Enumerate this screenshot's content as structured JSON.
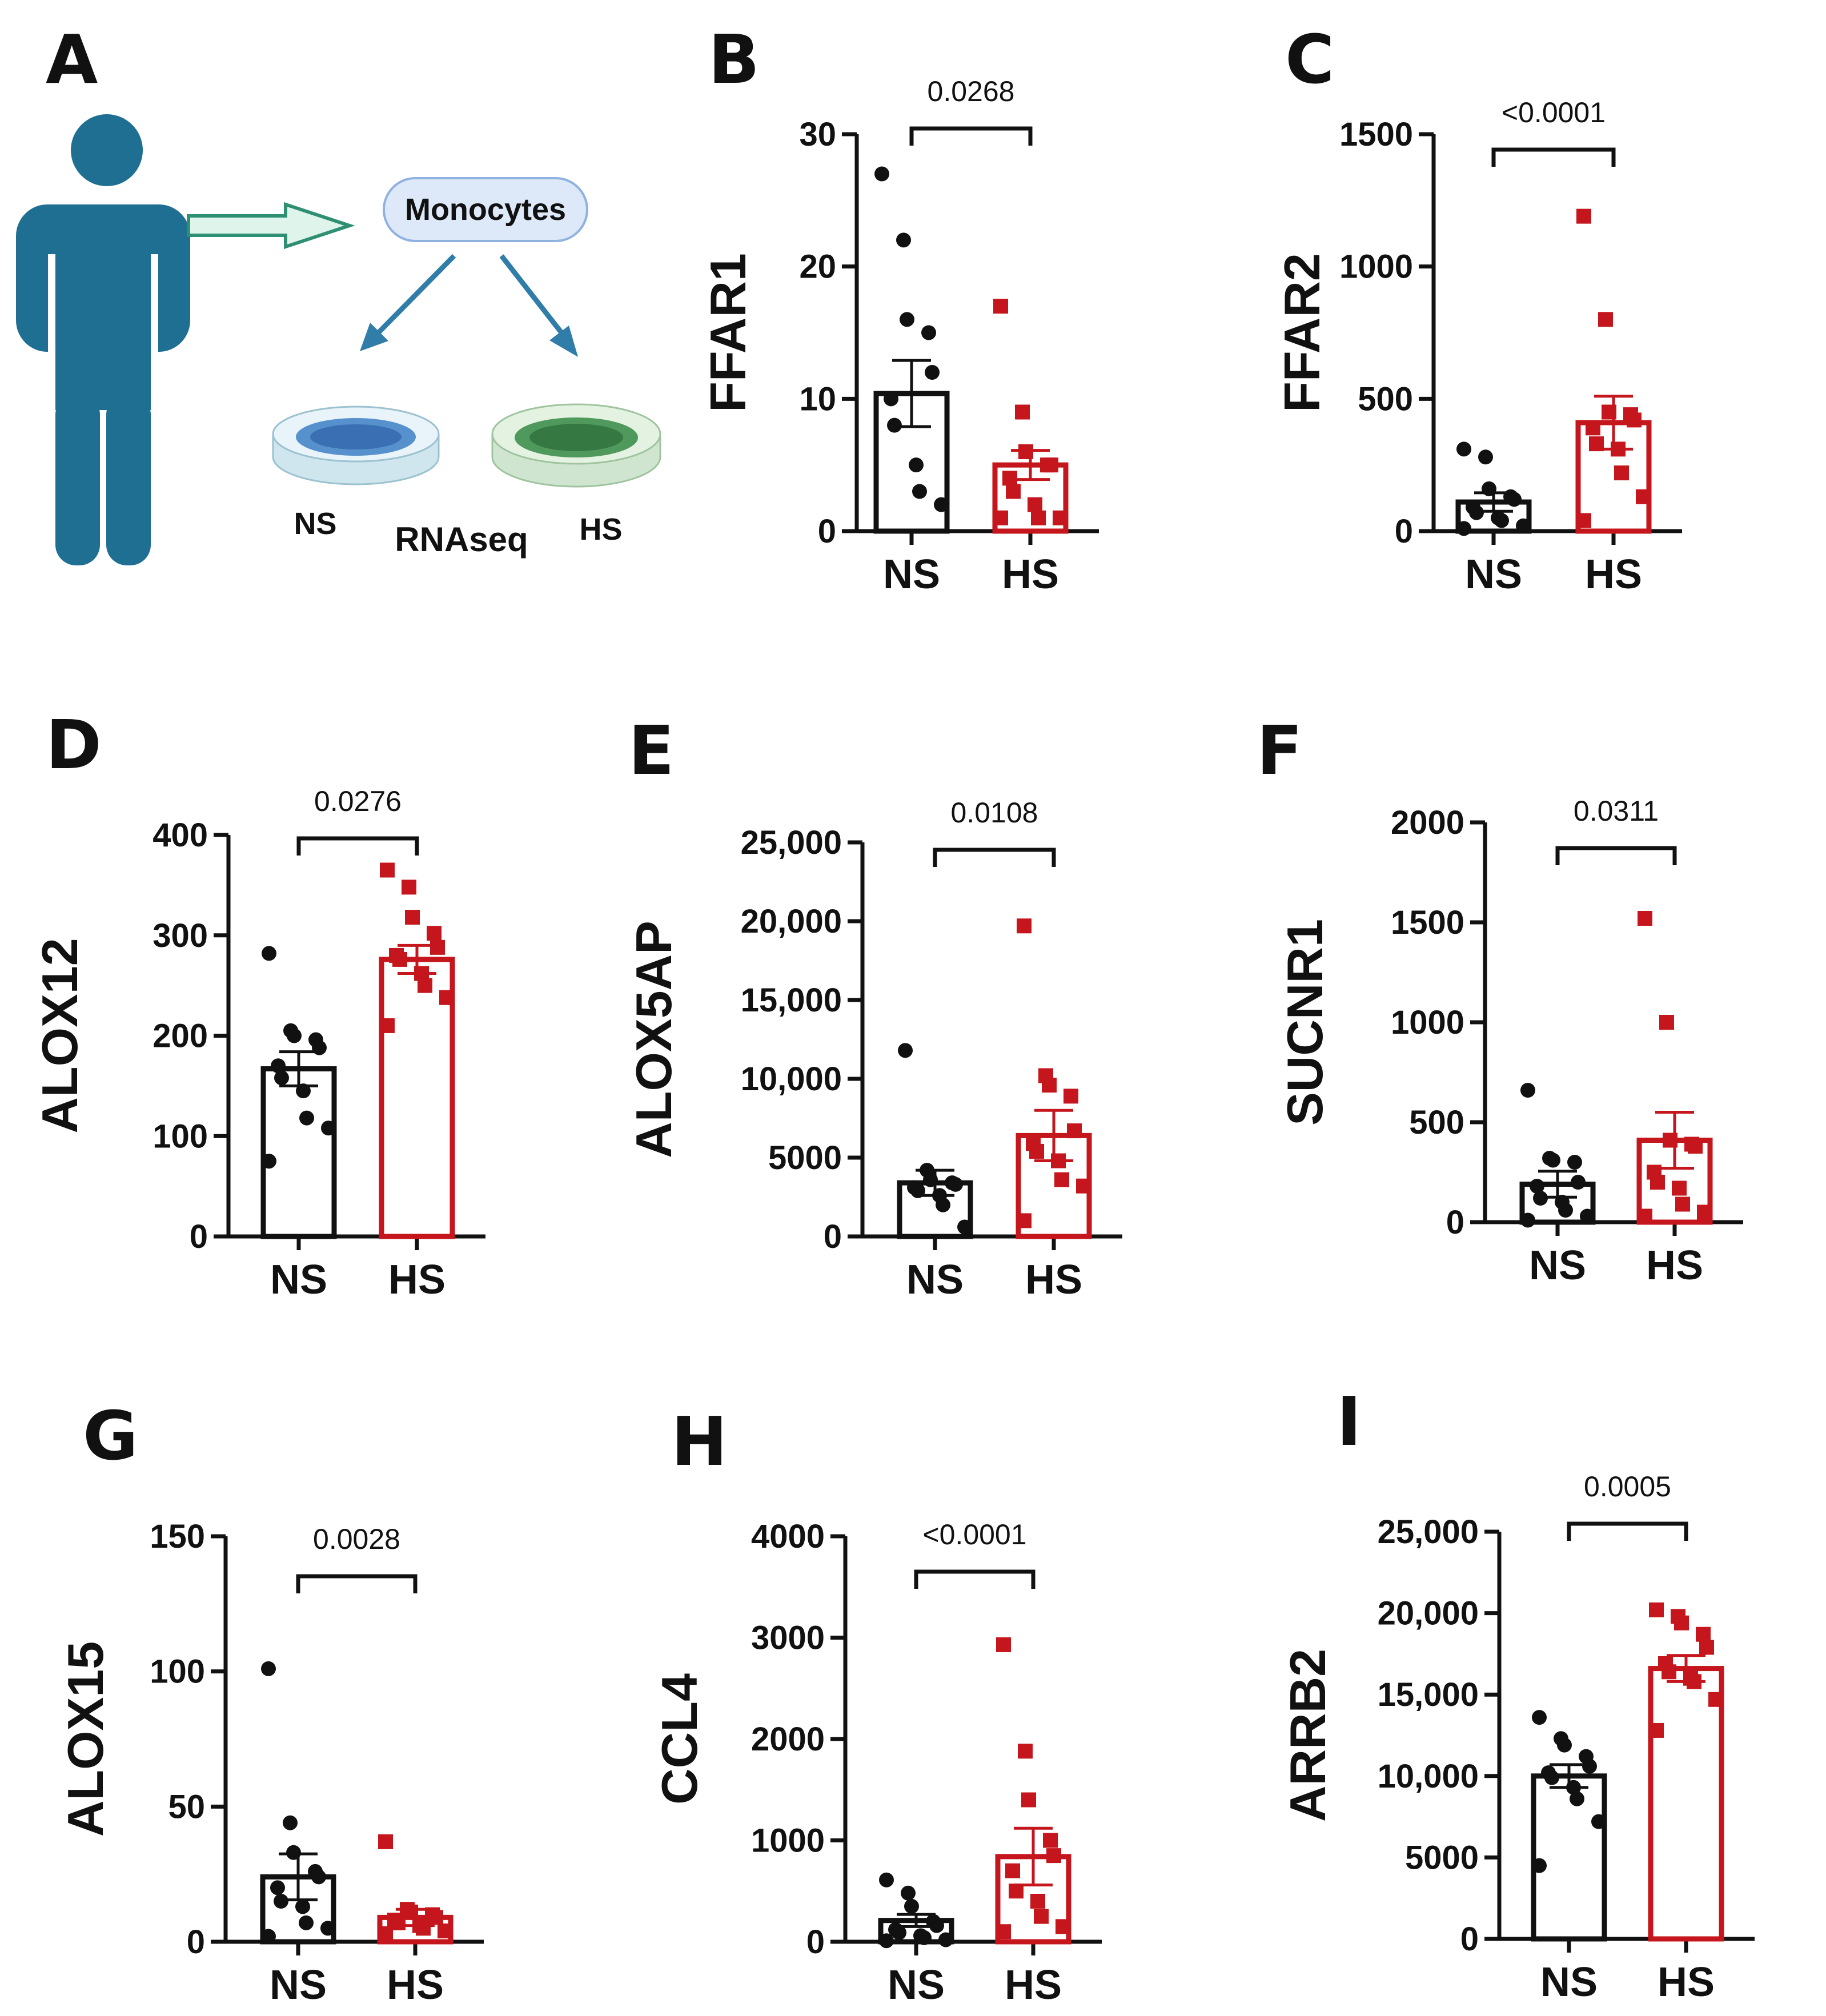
{
  "figure": {
    "diagram": {
      "letter": "A",
      "monocytes_label": "Monocytes",
      "ns_label": "NS",
      "hs_label": "HS",
      "rnaseq_label": "RNAseq",
      "colors": {
        "person": "#1f6f93",
        "arrow": "#2f7da8",
        "dish_ns": "#3d7fc4",
        "dish_hs": "#3f8f4f"
      }
    }
  },
  "colors": {
    "ns": "#111111",
    "hs": "#c4161c"
  },
  "chart_data": [
    {
      "letter": "B",
      "type": "bar",
      "title": "",
      "ylabel": "FFAR1",
      "categories": [
        "NS",
        "HS"
      ],
      "ylim": [
        0,
        30
      ],
      "yticks": [
        0,
        10,
        20,
        30
      ],
      "ytick_labels": [
        "0",
        "10",
        "20",
        "30"
      ],
      "means": [
        10.4,
        5.0
      ],
      "sems": [
        2.5,
        1.1
      ],
      "pvalue": "0.0268",
      "points": [
        [
          27,
          22,
          16,
          15,
          12,
          10,
          8,
          5,
          3,
          2
        ],
        [
          17,
          9,
          6,
          5,
          5,
          4,
          3,
          2,
          1,
          1,
          1
        ]
      ]
    },
    {
      "letter": "C",
      "type": "bar",
      "title": "",
      "ylabel": "FFAR2",
      "categories": [
        "NS",
        "HS"
      ],
      "ylim": [
        0,
        1500
      ],
      "yticks": [
        0,
        500,
        1000,
        1500
      ],
      "ytick_labels": [
        "0",
        "500",
        "1000",
        "1500"
      ],
      "means": [
        110,
        410
      ],
      "sems": [
        35,
        100
      ],
      "pvalue": "<0.0001",
      "points": [
        [
          310,
          280,
          160,
          130,
          120,
          90,
          70,
          50,
          40,
          20,
          10
        ],
        [
          1190,
          800,
          450,
          440,
          420,
          390,
          330,
          310,
          220,
          130,
          40
        ]
      ]
    },
    {
      "letter": "D",
      "type": "bar",
      "title": "",
      "ylabel": "ALOX12",
      "categories": [
        "NS",
        "HS"
      ],
      "ylim": [
        0,
        400
      ],
      "yticks": [
        0,
        100,
        200,
        300,
        400
      ],
      "ytick_labels": [
        "0",
        "100",
        "200",
        "300",
        "400"
      ],
      "means": [
        167,
        276
      ],
      "sems": [
        17,
        14
      ],
      "pvalue": "0.0276",
      "points": [
        [
          282,
          205,
          200,
          196,
          188,
          170,
          158,
          145,
          118,
          108,
          75
        ],
        [
          365,
          348,
          318,
          302,
          288,
          280,
          276,
          262,
          250,
          238,
          210
        ]
      ]
    },
    {
      "letter": "E",
      "type": "bar",
      "title": "",
      "ylabel": "ALOX5AP",
      "categories": [
        "NS",
        "HS"
      ],
      "ylim": [
        0,
        25000
      ],
      "yticks": [
        0,
        5000,
        10000,
        15000,
        20000,
        25000
      ],
      "ytick_labels": [
        "0",
        "5000",
        "10,000",
        "15,000",
        "20,000",
        "25,000"
      ],
      "means": [
        3400,
        6400
      ],
      "sems": [
        800,
        1600
      ],
      "pvalue": "0.0108",
      "points": [
        [
          11800,
          4200,
          3600,
          3400,
          3300,
          3100,
          2900,
          2600,
          2000,
          600
        ],
        [
          19700,
          10200,
          9600,
          8900,
          6700,
          5900,
          5400,
          4800,
          3600,
          3200,
          1000
        ]
      ]
    },
    {
      "letter": "F",
      "type": "bar",
      "title": "",
      "ylabel": "SUCNR1",
      "categories": [
        "NS",
        "HS"
      ],
      "ylim": [
        0,
        2000
      ],
      "yticks": [
        0,
        500,
        1000,
        1500,
        2000
      ],
      "ytick_labels": [
        "0",
        "500",
        "1000",
        "1500",
        "2000"
      ],
      "means": [
        190,
        410
      ],
      "sems": [
        65,
        140
      ],
      "pvalue": "0.0311",
      "points": [
        [
          660,
          320,
          310,
          300,
          200,
          180,
          120,
          100,
          60,
          30,
          10
        ],
        [
          1520,
          1000,
          410,
          390,
          380,
          250,
          200,
          170,
          90,
          50,
          30
        ]
      ]
    },
    {
      "letter": "G",
      "type": "bar",
      "title": "",
      "ylabel": "ALOX15",
      "categories": [
        "NS",
        "HS"
      ],
      "ylim": [
        0,
        150
      ],
      "yticks": [
        0,
        50,
        100,
        150
      ],
      "ytick_labels": [
        "0",
        "50",
        "100",
        "150"
      ],
      "means": [
        24,
        9
      ],
      "sems": [
        8.5,
        3
      ],
      "pvalue": "0.0028",
      "points": [
        [
          101,
          44,
          33,
          26,
          24,
          20,
          15,
          13,
          7,
          5,
          2
        ],
        [
          37,
          12,
          11,
          10,
          9,
          8,
          7,
          6,
          5,
          4,
          3
        ]
      ]
    },
    {
      "letter": "H",
      "type": "bar",
      "title": "",
      "ylabel": "CCL4",
      "categories": [
        "NS",
        "HS"
      ],
      "ylim": [
        0,
        4000
      ],
      "yticks": [
        0,
        1000,
        2000,
        3000,
        4000
      ],
      "ytick_labels": [
        "0",
        "1000",
        "2000",
        "3000",
        "4000"
      ],
      "means": [
        210,
        840
      ],
      "sems": [
        60,
        280
      ],
      "pvalue": "<0.0001",
      "points": [
        [
          610,
          480,
          350,
          200,
          160,
          120,
          90,
          60,
          40,
          20,
          10
        ],
        [
          2930,
          1880,
          1400,
          1000,
          850,
          700,
          500,
          400,
          250,
          150,
          100
        ]
      ]
    },
    {
      "letter": "I",
      "type": "bar",
      "title": "",
      "ylabel": "ARRB2",
      "categories": [
        "NS",
        "HS"
      ],
      "ylim": [
        0,
        25000
      ],
      "yticks": [
        0,
        5000,
        10000,
        15000,
        20000,
        25000
      ],
      "ytick_labels": [
        "0",
        "5000",
        "10,000",
        "15,000",
        "20,000",
        "25,000"
      ],
      "means": [
        10000,
        16600
      ],
      "sems": [
        700,
        800
      ],
      "pvalue": "0.0005",
      "points": [
        [
          13600,
          12300,
          11900,
          11200,
          10600,
          10200,
          9900,
          9300,
          8600,
          7200,
          4500
        ],
        [
          20200,
          19800,
          19400,
          18700,
          17900,
          16900,
          16400,
          16000,
          15800,
          14700,
          12800
        ]
      ]
    }
  ]
}
